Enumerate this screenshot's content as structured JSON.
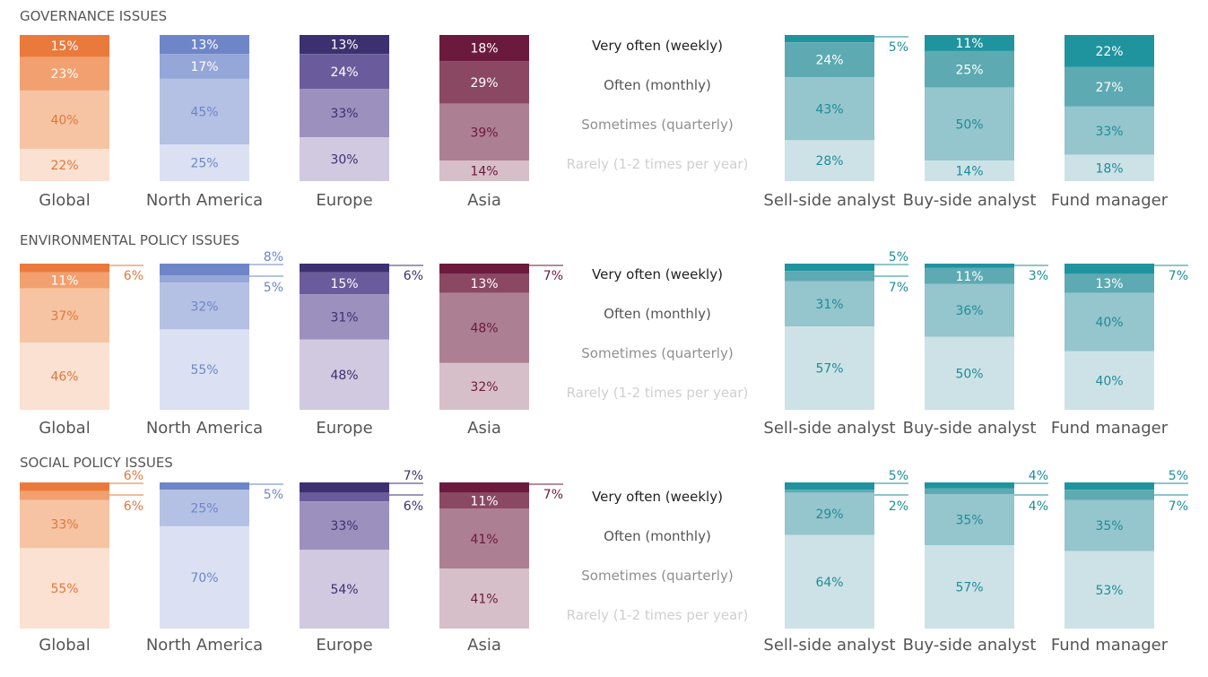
{
  "chart_data": {
    "type": "bar",
    "stacked": true,
    "legend": {
      "placement": "center",
      "entries": [
        "Very often (weekly)",
        "Often (monthly)",
        "Sometimes (quarterly)",
        "Rarely (1-2 times per year)"
      ],
      "text_colors": [
        "#222222",
        "#555555",
        "#8f8f8f",
        "#cfcfcf"
      ]
    },
    "categories": [
      "Global",
      "North America",
      "Europe",
      "Asia",
      "Sell-side analyst",
      "Buy-side analyst",
      "Fund manager"
    ],
    "category_colors": [
      {
        "segments": [
          "#ea7a3c",
          "#f2a06f",
          "#f6c4a3",
          "#fbe1d1"
        ],
        "text": "#e2773c",
        "text_dark": "#ffffff"
      },
      {
        "segments": [
          "#6e86c8",
          "#95a6d8",
          "#b4c0e4",
          "#dbe1f2"
        ],
        "text": "#6e86c8",
        "text_dark": "#ffffff"
      },
      {
        "segments": [
          "#3d3070",
          "#6a5c9c",
          "#9c90bf",
          "#d0c9e0"
        ],
        "text": "#3d3070",
        "text_dark": "#ffffff"
      },
      {
        "segments": [
          "#6b1a3e",
          "#8a4863",
          "#ad7f93",
          "#d6bfc8"
        ],
        "text": "#6b1a3e",
        "text_dark": "#ffffff"
      },
      {
        "segments": [
          "#1f949f",
          "#5eaab3",
          "#95c5cd",
          "#cde2e7"
        ],
        "text": "#1f8c97",
        "text_dark": "#ffffff"
      },
      {
        "segments": [
          "#1f949f",
          "#5eaab3",
          "#95c5cd",
          "#cde2e7"
        ],
        "text": "#1f8c97",
        "text_dark": "#ffffff"
      },
      {
        "segments": [
          "#1f949f",
          "#5eaab3",
          "#95c5cd",
          "#cde2e7"
        ],
        "text": "#1f8c97",
        "text_dark": "#ffffff"
      }
    ],
    "panels": [
      {
        "title": "GOVERNANCE ISSUES",
        "values": [
          [
            15,
            23,
            40,
            22
          ],
          [
            13,
            17,
            45,
            25
          ],
          [
            13,
            24,
            33,
            30
          ],
          [
            18,
            29,
            39,
            14
          ],
          [
            5,
            24,
            43,
            28
          ],
          [
            11,
            25,
            50,
            14
          ],
          [
            22,
            27,
            33,
            18
          ]
        ],
        "labels": [
          [
            "15%",
            "23%",
            "40%",
            "22%"
          ],
          [
            "13%",
            "17%",
            "45%",
            "25%"
          ],
          [
            "13%",
            "24%",
            "33%",
            "30%"
          ],
          [
            "18%",
            "29%",
            "39%",
            "14%"
          ],
          [
            "5%",
            "24%",
            "43%",
            "28%"
          ],
          [
            "11%",
            "25%",
            "50%",
            "14%"
          ],
          [
            "22%",
            "27%",
            "33%",
            "18%"
          ]
        ]
      },
      {
        "title": "ENVIRONMENTAL POLICY ISSUES",
        "values": [
          [
            6,
            11,
            37,
            46
          ],
          [
            8,
            5,
            32,
            55
          ],
          [
            6,
            15,
            31,
            48
          ],
          [
            7,
            13,
            48,
            32
          ],
          [
            5,
            7,
            31,
            57
          ],
          [
            3,
            11,
            36,
            50
          ],
          [
            7,
            13,
            40,
            40
          ]
        ],
        "labels": [
          [
            "6%",
            "11%",
            "37%",
            "46%"
          ],
          [
            "8%",
            "5%",
            "32%",
            "55%"
          ],
          [
            "6%",
            "15%",
            "31%",
            "48%"
          ],
          [
            "7%",
            "13%",
            "48%",
            "32%"
          ],
          [
            "5%",
            "7%",
            "31%",
            "57%"
          ],
          [
            "3%",
            "11%",
            "36%",
            "50%"
          ],
          [
            "7%",
            "13%",
            "40%",
            "40%"
          ]
        ]
      },
      {
        "title": "SOCIAL POLICY ISSUES",
        "values": [
          [
            6,
            6,
            33,
            55
          ],
          [
            5,
            0,
            25,
            70
          ],
          [
            7,
            6,
            33,
            54
          ],
          [
            7,
            11,
            41,
            41
          ],
          [
            5,
            2,
            29,
            64
          ],
          [
            4,
            4,
            35,
            57
          ],
          [
            5,
            7,
            35,
            53
          ]
        ],
        "labels": [
          [
            "6%",
            "6%",
            "33%",
            "55%"
          ],
          [
            "5%",
            "",
            "25%",
            "70%"
          ],
          [
            "7%",
            "6%",
            "33%",
            "54%"
          ],
          [
            "7%",
            "11%",
            "41%",
            "41%"
          ],
          [
            "5%",
            "2%",
            "29%",
            "64%"
          ],
          [
            "4%",
            "4%",
            "35%",
            "57%"
          ],
          [
            "5%",
            "7%",
            "35%",
            "53%"
          ]
        ]
      }
    ]
  }
}
